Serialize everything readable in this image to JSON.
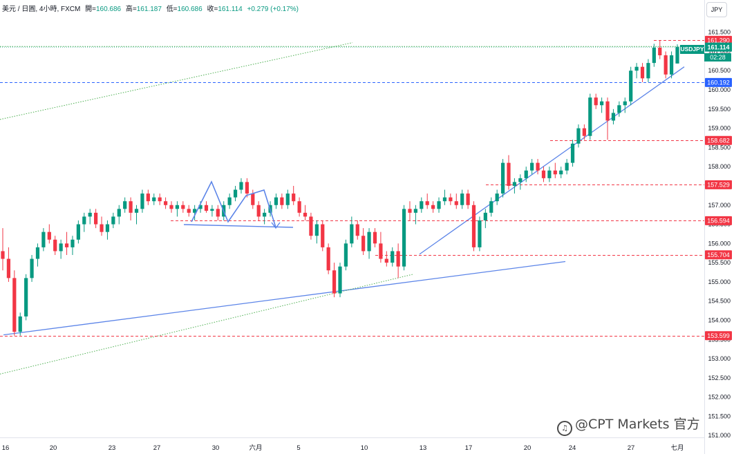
{
  "header": {
    "symbol_line": "美元 / 日圓, 4小時, FXCM",
    "open_label": "開=",
    "open": "160.686",
    "high_label": "高=",
    "high": "161.187",
    "low_label": "低=",
    "low": "160.686",
    "close_label": "收=",
    "close": "161.114",
    "change": "+0.279 (+0.17%)"
  },
  "currency_button": "JPY",
  "watermark": {
    "text": "@CPT Markets 官方",
    "logo_glyph": "♫"
  },
  "colors": {
    "up": "#089981",
    "down": "#f23645",
    "trend_line": "#5b84e8",
    "level_line": "#f23645",
    "blue_level": "#2962ff",
    "channel": "#4caf50"
  },
  "chart_data": {
    "type": "candlestick",
    "y_ticks": [
      151.0,
      151.5,
      152.0,
      152.5,
      153.0,
      153.5,
      154.0,
      154.5,
      155.0,
      155.5,
      156.0,
      156.5,
      157.0,
      157.5,
      158.0,
      158.5,
      159.0,
      159.5,
      160.0,
      160.5,
      161.0,
      161.5
    ],
    "y_range": [
      150.95,
      161.8
    ],
    "x_labels": [
      "16",
      "20",
      "23",
      "27",
      "30",
      "六月",
      "5",
      "10",
      "13",
      "17",
      "20",
      "24",
      "27",
      "七月"
    ],
    "price_tags": [
      {
        "value": 161.29,
        "label": "161.290",
        "color": "#f23645"
      },
      {
        "value": 160.192,
        "label": "160.192",
        "color": "#2962ff"
      },
      {
        "value": 158.682,
        "label": "158.682",
        "color": "#f23645"
      },
      {
        "value": 157.529,
        "label": "157.529",
        "color": "#f23645"
      },
      {
        "value": 156.594,
        "label": "156.594",
        "color": "#f23645"
      },
      {
        "value": 155.704,
        "label": "155.704",
        "color": "#f23645"
      },
      {
        "value": 153.599,
        "label": "153.599",
        "color": "#f23645"
      }
    ],
    "last_price": {
      "symbol": "USDJPY",
      "value": 161.114,
      "label": "161.114",
      "countdown": "02:28"
    },
    "candles": [
      [
        155.8,
        156.4,
        155.3,
        155.6
      ],
      [
        155.6,
        155.9,
        155.0,
        155.1
      ],
      [
        155.1,
        155.3,
        153.6,
        153.7
      ],
      [
        153.7,
        154.2,
        153.6,
        154.1
      ],
      [
        154.1,
        155.2,
        154.0,
        155.1
      ],
      [
        155.1,
        155.7,
        155.0,
        155.6
      ],
      [
        155.6,
        156.0,
        155.4,
        155.9
      ],
      [
        155.9,
        156.4,
        155.8,
        156.3
      ],
      [
        156.3,
        156.5,
        156.0,
        156.1
      ],
      [
        156.1,
        156.2,
        155.7,
        155.8
      ],
      [
        155.8,
        156.1,
        155.6,
        156.0
      ],
      [
        156.0,
        156.3,
        155.7,
        155.9
      ],
      [
        155.9,
        156.2,
        155.7,
        156.1
      ],
      [
        156.1,
        156.6,
        156.0,
        156.5
      ],
      [
        156.5,
        156.8,
        156.3,
        156.7
      ],
      [
        156.7,
        156.9,
        156.5,
        156.8
      ],
      [
        156.8,
        156.9,
        156.4,
        156.5
      ],
      [
        156.5,
        156.7,
        156.2,
        156.3
      ],
      [
        156.3,
        156.6,
        156.1,
        156.5
      ],
      [
        156.5,
        156.8,
        156.4,
        156.7
      ],
      [
        156.7,
        157.0,
        156.5,
        156.9
      ],
      [
        156.9,
        157.2,
        156.8,
        157.1
      ],
      [
        157.1,
        157.2,
        156.6,
        156.8
      ],
      [
        156.8,
        157.0,
        156.5,
        156.9
      ],
      [
        156.9,
        157.4,
        156.8,
        157.3
      ],
      [
        157.3,
        157.4,
        157.0,
        157.1
      ],
      [
        157.1,
        157.3,
        157.0,
        157.2
      ],
      [
        157.2,
        157.3,
        157.0,
        157.1
      ],
      [
        157.1,
        157.2,
        156.9,
        157.0
      ],
      [
        157.0,
        157.1,
        156.8,
        156.9
      ],
      [
        156.9,
        157.1,
        156.7,
        157.0
      ],
      [
        157.0,
        157.1,
        156.8,
        156.9
      ],
      [
        156.9,
        157.0,
        156.7,
        156.8
      ],
      [
        156.8,
        157.0,
        156.6,
        156.9
      ],
      [
        156.9,
        157.1,
        156.8,
        157.0
      ],
      [
        157.0,
        157.1,
        156.8,
        156.85
      ],
      [
        156.85,
        157.0,
        156.7,
        156.9
      ],
      [
        156.9,
        157.0,
        156.6,
        156.7
      ],
      [
        156.7,
        157.1,
        156.6,
        157.0
      ],
      [
        157.0,
        157.3,
        156.9,
        157.2
      ],
      [
        157.2,
        157.5,
        157.1,
        157.4
      ],
      [
        157.4,
        157.7,
        157.3,
        157.6
      ],
      [
        157.6,
        157.7,
        157.2,
        157.3
      ],
      [
        157.3,
        157.4,
        156.9,
        157.0
      ],
      [
        157.0,
        157.1,
        156.6,
        156.7
      ],
      [
        156.7,
        156.9,
        156.5,
        156.8
      ],
      [
        156.8,
        157.1,
        156.7,
        157.0
      ],
      [
        157.0,
        157.3,
        156.9,
        157.2
      ],
      [
        157.2,
        157.3,
        156.9,
        157.0
      ],
      [
        157.0,
        157.4,
        156.9,
        157.3
      ],
      [
        157.3,
        157.5,
        157.0,
        157.1
      ],
      [
        157.1,
        157.2,
        156.7,
        156.8
      ],
      [
        156.8,
        157.0,
        156.6,
        156.7
      ],
      [
        156.7,
        156.8,
        156.1,
        156.2
      ],
      [
        156.2,
        156.6,
        156.0,
        156.5
      ],
      [
        156.5,
        156.6,
        155.8,
        155.9
      ],
      [
        155.9,
        156.0,
        155.2,
        155.3
      ],
      [
        155.3,
        155.5,
        154.6,
        154.7
      ],
      [
        154.7,
        155.5,
        154.6,
        155.4
      ],
      [
        155.4,
        156.1,
        155.3,
        156.0
      ],
      [
        156.0,
        156.7,
        155.9,
        156.5
      ],
      [
        156.5,
        156.6,
        156.1,
        156.2
      ],
      [
        156.2,
        156.4,
        155.7,
        155.8
      ],
      [
        155.8,
        156.4,
        155.6,
        156.3
      ],
      [
        156.3,
        156.4,
        155.9,
        156.0
      ],
      [
        156.0,
        156.3,
        155.5,
        155.6
      ],
      [
        155.6,
        155.8,
        155.4,
        155.5
      ],
      [
        155.5,
        155.9,
        155.4,
        155.8
      ],
      [
        155.8,
        156.0,
        155.1,
        155.4
      ],
      [
        155.4,
        157.0,
        155.3,
        156.9
      ],
      [
        156.9,
        157.1,
        156.6,
        156.8
      ],
      [
        156.8,
        157.0,
        156.5,
        156.9
      ],
      [
        156.9,
        157.2,
        156.8,
        157.1
      ],
      [
        157.1,
        157.3,
        156.9,
        157.0
      ],
      [
        157.0,
        157.1,
        156.8,
        156.9
      ],
      [
        156.9,
        157.2,
        156.8,
        157.1
      ],
      [
        157.1,
        157.4,
        157.0,
        157.2
      ],
      [
        157.2,
        157.3,
        157.0,
        157.1
      ],
      [
        157.1,
        157.3,
        156.9,
        157.0
      ],
      [
        157.0,
        157.4,
        156.9,
        157.3
      ],
      [
        157.3,
        157.4,
        156.9,
        157.0
      ],
      [
        157.0,
        157.1,
        155.8,
        155.9
      ],
      [
        155.9,
        156.7,
        155.8,
        156.6
      ],
      [
        156.6,
        156.9,
        156.4,
        156.8
      ],
      [
        156.8,
        157.2,
        156.7,
        157.1
      ],
      [
        157.1,
        157.4,
        157.0,
        157.3
      ],
      [
        157.3,
        158.2,
        157.2,
        158.1
      ],
      [
        158.1,
        158.3,
        157.4,
        157.5
      ],
      [
        157.5,
        157.7,
        157.3,
        157.6
      ],
      [
        157.6,
        157.8,
        157.4,
        157.7
      ],
      [
        157.7,
        158.0,
        157.6,
        157.9
      ],
      [
        157.9,
        158.2,
        157.8,
        158.1
      ],
      [
        158.1,
        158.2,
        157.8,
        157.9
      ],
      [
        157.9,
        158.0,
        157.6,
        157.7
      ],
      [
        157.7,
        158.0,
        157.6,
        157.9
      ],
      [
        157.9,
        158.1,
        157.7,
        157.8
      ],
      [
        157.8,
        158.0,
        157.7,
        157.9
      ],
      [
        157.9,
        158.2,
        157.8,
        158.1
      ],
      [
        158.1,
        158.7,
        158.0,
        158.6
      ],
      [
        158.6,
        159.1,
        158.5,
        159.0
      ],
      [
        159.0,
        159.1,
        158.7,
        158.8
      ],
      [
        158.8,
        159.9,
        158.7,
        159.8
      ],
      [
        159.8,
        159.9,
        159.5,
        159.6
      ],
      [
        159.6,
        159.8,
        159.4,
        159.7
      ],
      [
        159.7,
        159.8,
        158.7,
        159.2
      ],
      [
        159.2,
        159.5,
        159.1,
        159.4
      ],
      [
        159.4,
        159.7,
        159.3,
        159.6
      ],
      [
        159.6,
        159.8,
        159.4,
        159.7
      ],
      [
        159.7,
        160.6,
        159.6,
        160.5
      ],
      [
        160.5,
        160.7,
        160.3,
        160.6
      ],
      [
        160.6,
        160.7,
        160.2,
        160.3
      ],
      [
        160.3,
        160.8,
        160.2,
        160.7
      ],
      [
        160.7,
        161.2,
        160.6,
        161.1
      ],
      [
        161.1,
        161.29,
        160.8,
        160.9
      ],
      [
        160.9,
        161.0,
        160.3,
        160.4
      ],
      [
        160.4,
        161.0,
        160.3,
        160.9
      ],
      [
        160.686,
        161.187,
        160.686,
        161.114
      ]
    ],
    "trend_lines": [
      {
        "style": "solid",
        "color": "#5b84e8",
        "from": [
          5,
          153.62
        ],
        "to": [
          818,
          155.53
        ]
      },
      {
        "style": "solid",
        "color": "#5b84e8",
        "from": [
          607,
          155.72
        ],
        "to": [
          990,
          160.6
        ]
      },
      {
        "style": "dotted",
        "color": "#4caf50",
        "from": [
          0,
          159.23
        ],
        "to": [
          510,
          161.23
        ]
      },
      {
        "style": "dotted",
        "color": "#4caf50",
        "from": [
          0,
          152.6
        ],
        "to": [
          598,
          155.2
        ]
      },
      {
        "style": "dotted",
        "color": "#4caf50",
        "from": [
          0,
          161.13
        ],
        "to": [
          1019,
          161.13
        ]
      }
    ]
  }
}
